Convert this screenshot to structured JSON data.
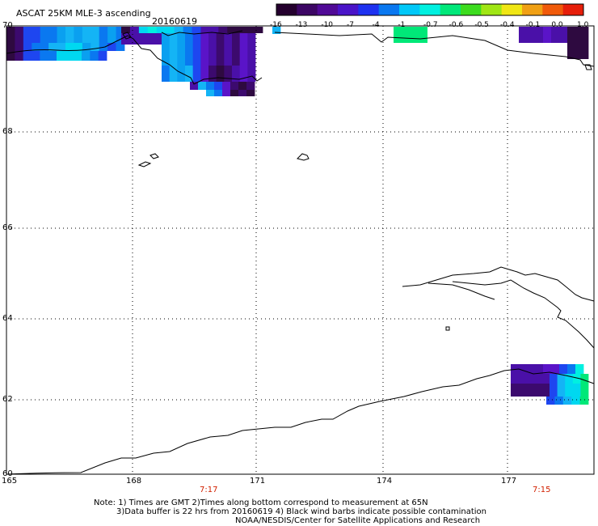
{
  "title": {
    "product": "ASCAT 25KM MLE-3 ascending",
    "date": "20160619"
  },
  "colorbar": {
    "labels": [
      "-16",
      "-13",
      "-10",
      "-7",
      "-4",
      "-1",
      "-0.7",
      "-0.6",
      "-0.5",
      "-0.4",
      "-0.1",
      "0.0",
      "1.0"
    ],
    "colors": [
      "#24002e",
      "#3c0664",
      "#500a96",
      "#4a14c8",
      "#1e32f0",
      "#0a78f0",
      "#00c8f8",
      "#00f0e0",
      "#00e87a",
      "#3cdc1e",
      "#a0e614",
      "#f0e614",
      "#f0a014",
      "#f05a0a",
      "#e61e0a"
    ]
  },
  "map": {
    "lat_labels": [
      "70",
      "68",
      "66",
      "64",
      "62",
      "60"
    ],
    "lon_labels": [
      "165",
      "168",
      "171",
      "174",
      "177"
    ],
    "time_labels": [
      "7:17",
      "7:15"
    ],
    "colors": {
      "deep_purple": "#2e0a40",
      "dark_purple": "#3c0a6e",
      "purple": "#4a10a8",
      "violet": "#5a14c8",
      "blue": "#1e46f0",
      "mid_blue": "#0a78f0",
      "light_blue": "#0aa0f0",
      "sky": "#14b4f5",
      "cyan": "#00d8f0",
      "aqua": "#00f0e0",
      "green": "#00e878",
      "coast": "#000000",
      "grid": "#000000",
      "time": "#d22000"
    }
  },
  "notes": {
    "line1": "Note: 1) Times are GMT 2)Times along bottom correspond to measurement at 65N",
    "line2": "3)Data buffer is 22 hrs from 20160619 4) Black wind barbs indicate possible contamination",
    "line3": "NOAA/NESDIS/Center for Satellite Applications and Research"
  }
}
